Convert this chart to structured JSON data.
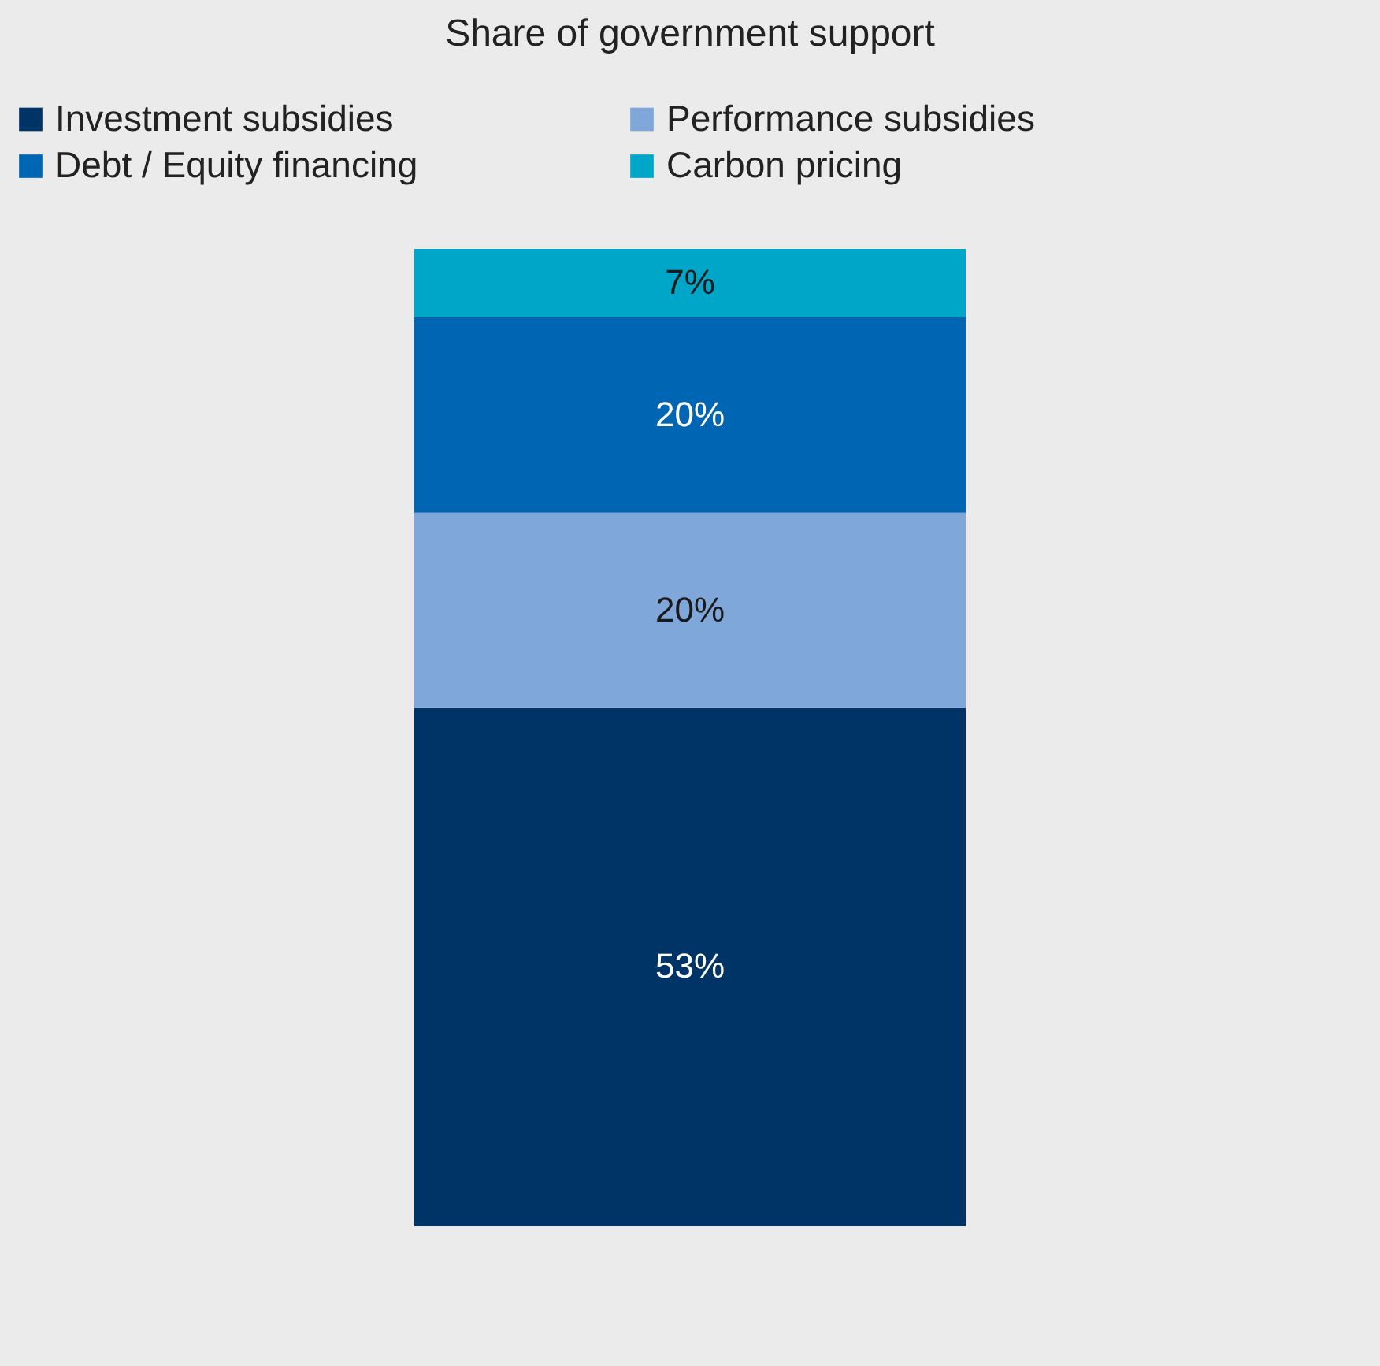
{
  "chart_data": {
    "type": "bar",
    "title": "Share of government support",
    "categories": [
      null
    ],
    "stacked": true,
    "ylim": [
      0,
      100
    ],
    "tick_labels": false,
    "legend": "top",
    "grid": false,
    "series": [
      {
        "name": "Investment subsidies",
        "color": "#003366",
        "values": [
          53
        ],
        "value_labels": [
          "53%"
        ]
      },
      {
        "name": "Performance subsidies",
        "color": "#7fa7d9",
        "values": [
          20
        ],
        "value_labels": [
          "20%"
        ]
      },
      {
        "name": "Debt / Equity financing",
        "color": "#0066b3",
        "values": [
          20
        ],
        "value_labels": [
          "20%"
        ]
      },
      {
        "name": "Carbon pricing",
        "color": "#00a6c8",
        "values": [
          7
        ],
        "value_labels": [
          "7%"
        ]
      }
    ]
  }
}
